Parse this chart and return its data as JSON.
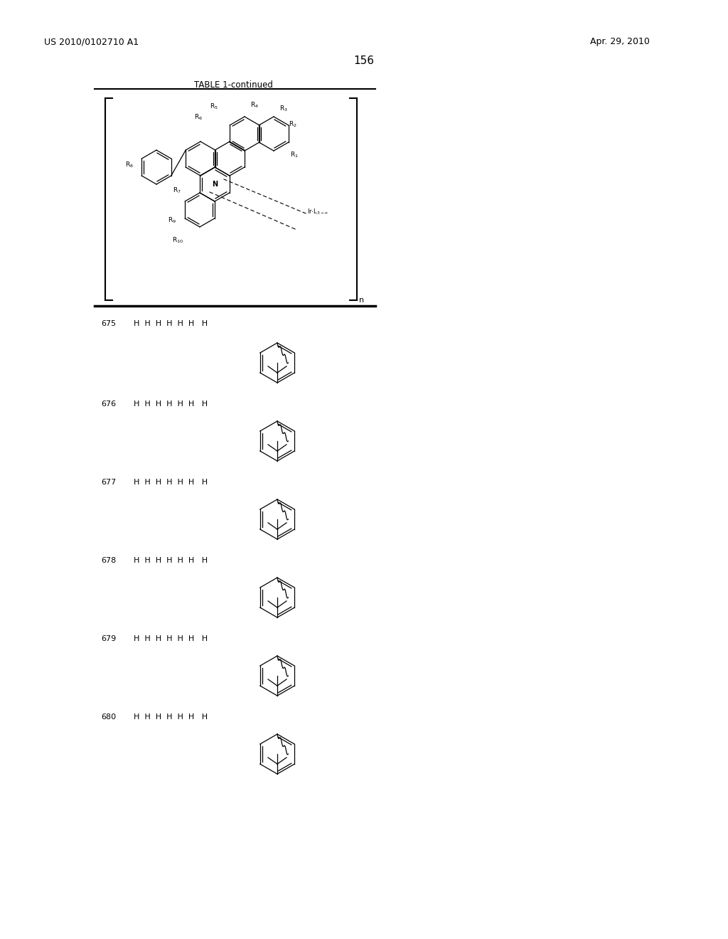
{
  "page_number": "156",
  "patent_number": "US 2010/0102710 A1",
  "patent_date": "Apr. 29, 2010",
  "table_title": "TABLE 1-continued",
  "background_color": "#ffffff",
  "rows": [
    {
      "id": "675",
      "r_values": "H  H  H  H  H  H   H"
    },
    {
      "id": "676",
      "r_values": "H  H  H  H  H  H   H"
    },
    {
      "id": "677",
      "r_values": "H  H  H  H  H  H   H"
    },
    {
      "id": "678",
      "r_values": "H  H  H  H  H  H   H"
    },
    {
      "id": "679",
      "r_values": "H  H  H  H  H  H   H"
    },
    {
      "id": "680",
      "r_values": "H  H  H  H  H  H   H"
    }
  ]
}
